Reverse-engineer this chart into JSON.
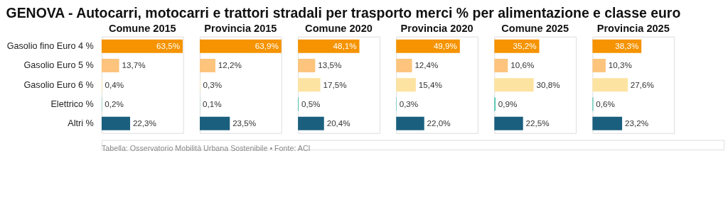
{
  "chart_data": [
    {
      "type": "other",
      "title": "GENOVA - Autocarri, motocarri e trattori stradali per trasporto merci % per alimentazione e classe euro"
    },
    {
      "type": "bar",
      "orientation": "horizontal",
      "title": "Comune 2015",
      "tick_labels": "y",
      "categories": [
        "Gasolio fino Euro 4 %",
        "Gasolio Euro 5 %",
        "Gasolio Euro 6 %",
        "Elettrico %",
        "Altri %"
      ],
      "values": [
        63.5,
        13.7,
        0.4,
        0.2,
        22.3
      ],
      "value_labels": [
        "63,5%",
        "13,7%",
        "0,4%",
        "0,2%",
        "22,3%"
      ],
      "colors": [
        "#f59300",
        "#fcc47c",
        "#fde3a1",
        "#3cbfa7",
        "#1b5f7e"
      ]
    },
    {
      "type": "bar",
      "orientation": "horizontal",
      "title": "Provincia 2015",
      "tick_labels": false,
      "categories": [
        null,
        null,
        null,
        null,
        null
      ],
      "values": [
        63.9,
        12.2,
        0.3,
        0.1,
        23.5
      ],
      "value_labels": [
        "63,9%",
        "12,2%",
        "0,3%",
        "0,1%",
        "23,5%"
      ],
      "colors": [
        "#f59300",
        "#fcc47c",
        "#fde3a1",
        "#3cbfa7",
        "#1b5f7e"
      ]
    },
    {
      "type": "bar",
      "orientation": "horizontal",
      "title": "Comune 2020",
      "tick_labels": false,
      "categories": [
        null,
        null,
        null,
        null,
        null
      ],
      "values": [
        48.1,
        13.5,
        17.5,
        0.5,
        20.4
      ],
      "value_labels": [
        "48,1%",
        "13,5%",
        "17,5%",
        "0,5%",
        "20,4%"
      ],
      "colors": [
        "#f59300",
        "#fcc47c",
        "#fde3a1",
        "#3cbfa7",
        "#1b5f7e"
      ]
    },
    {
      "type": "bar",
      "orientation": "horizontal",
      "title": "Provincia 2020",
      "tick_labels": false,
      "categories": [
        null,
        null,
        null,
        null,
        null
      ],
      "values": [
        49.9,
        12.4,
        15.4,
        0.3,
        22.0
      ],
      "value_labels": [
        "49,9%",
        "12,4%",
        "15,4%",
        "0,3%",
        "22,0%"
      ],
      "colors": [
        "#f59300",
        "#fcc47c",
        "#fde3a1",
        "#3cbfa7",
        "#1b5f7e"
      ]
    },
    {
      "type": "bar",
      "orientation": "horizontal",
      "title": "Comune 2025",
      "tick_labels": false,
      "categories": [
        null,
        null,
        null,
        null,
        null
      ],
      "values": [
        35.2,
        10.6,
        30.8,
        0.9,
        22.5
      ],
      "value_labels": [
        "35,2%",
        "10,6%",
        "30,8%",
        "0,9%",
        "22,5%"
      ],
      "colors": [
        "#f59300",
        "#fcc47c",
        "#fde3a1",
        "#3cbfa7",
        "#1b5f7e"
      ]
    },
    {
      "type": "bar",
      "orientation": "horizontal",
      "title": "Provincia 2025",
      "tick_labels": false,
      "categories": [
        null,
        null,
        null,
        null,
        null
      ],
      "values": [
        38.3,
        10.3,
        27.6,
        0.6,
        23.2
      ],
      "value_labels": [
        "38,3%",
        "10,3%",
        "27,6%",
        "0,6%",
        "23,2%"
      ],
      "colors": [
        "#f59300",
        "#fcc47c",
        "#fde3a1",
        "#3cbfa7",
        "#1b5f7e"
      ]
    },
    {
      "type": "other",
      "annotations": [
        "Tabella: Osservatorio Mobilità Urbana Sostenibile • Fonte: ACI"
      ]
    }
  ]
}
